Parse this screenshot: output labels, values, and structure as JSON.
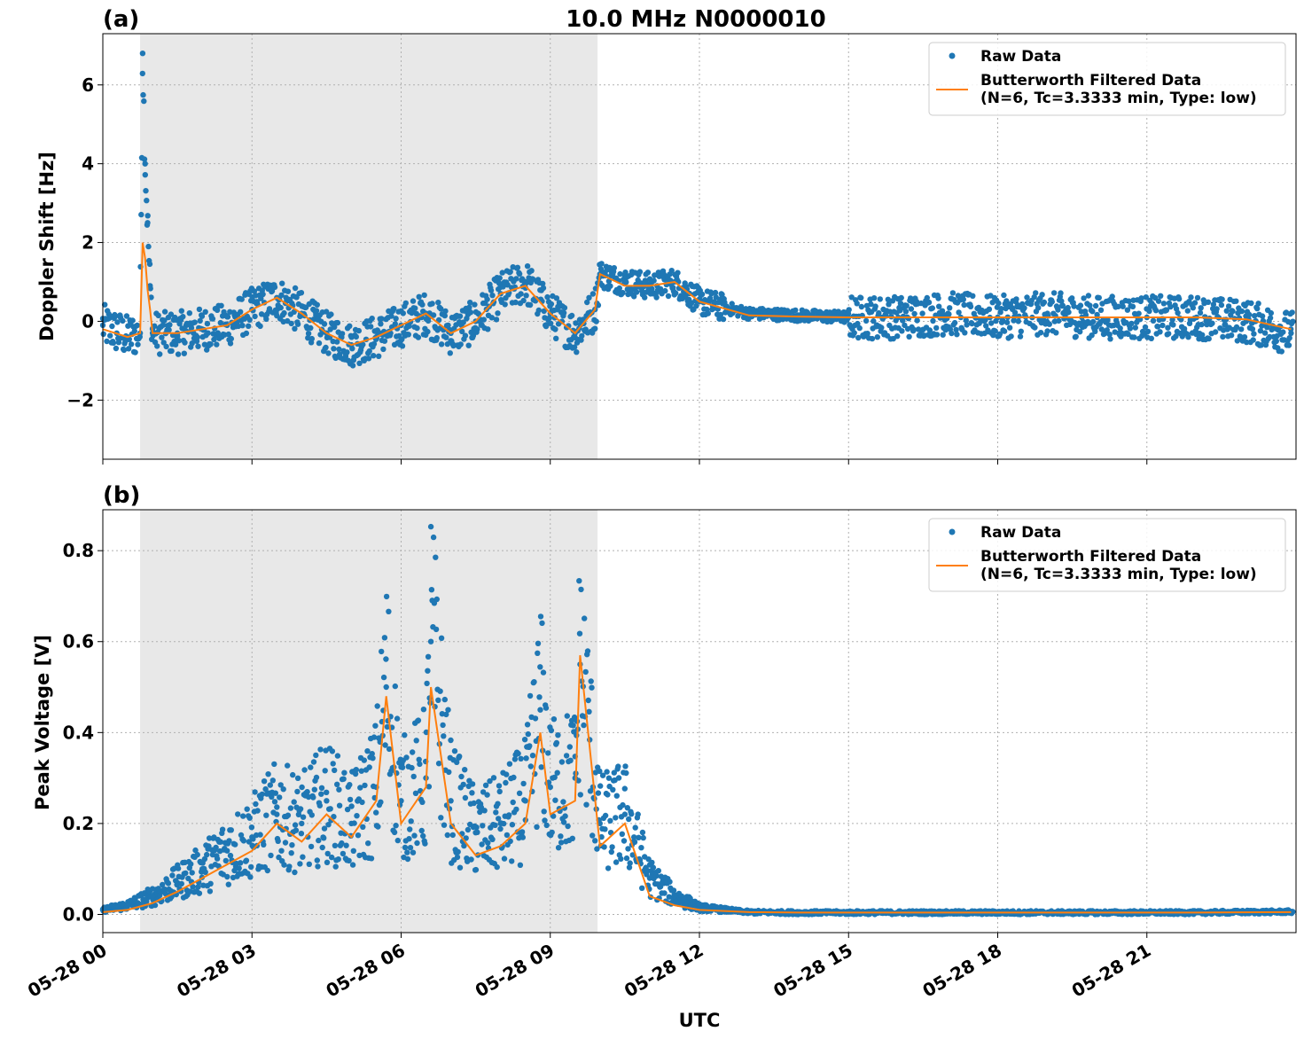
{
  "figure": {
    "title": "10.0 MHz N0000010",
    "xlabel": "UTC",
    "colors": {
      "raw": "#1f77b4",
      "filtered": "#ff7f0e",
      "shade": "#e8e8e8",
      "grid": "#b0b0b0"
    }
  },
  "chart_data": [
    {
      "type": "scatter",
      "panel_label": "(a)",
      "title": "10.0 MHz N0000010",
      "xlabel": "",
      "ylabel": "Doppler Shift [Hz]",
      "xlim": [
        "2023-05-28 00:00",
        "2023-05-29 00:00"
      ],
      "ylim": [
        -3.5,
        7.3
      ],
      "x_ticks": [
        "05-28 00",
        "05-28 03",
        "05-28 06",
        "05-28 09",
        "05-28 12",
        "05-28 15",
        "05-28 18",
        "05-28 21"
      ],
      "y_ticks": [
        -2,
        0,
        2,
        4,
        6
      ],
      "grid": true,
      "legend_position": "top-right",
      "shaded_interval_hours": [
        0.75,
        9.95
      ],
      "series": [
        {
          "name": "Raw Data",
          "style": "points",
          "color": "#1f77b4",
          "x_hours": [
            0.0,
            0.5,
            0.75,
            0.8,
            0.85,
            0.9,
            0.95,
            1.0,
            1.5,
            2.0,
            2.5,
            3.0,
            3.5,
            4.0,
            4.5,
            5.0,
            5.5,
            6.0,
            6.5,
            7.0,
            7.5,
            8.0,
            8.5,
            9.0,
            9.5,
            9.9,
            10.0,
            10.5,
            11.0,
            11.5,
            12.0,
            13.0,
            14.0,
            15.0,
            16.0,
            17.0,
            18.0,
            19.0,
            20.0,
            21.0,
            22.0,
            23.0,
            23.9
          ],
          "y": [
            -0.1,
            -0.4,
            -0.3,
            6.8,
            4.0,
            2.5,
            0.9,
            -0.3,
            -0.3,
            -0.2,
            -0.1,
            0.3,
            0.6,
            0.2,
            -0.3,
            -0.6,
            -0.4,
            -0.1,
            0.2,
            -0.3,
            0.0,
            0.7,
            1.0,
            0.2,
            -0.3,
            0.3,
            1.2,
            1.0,
            0.9,
            1.0,
            0.5,
            0.2,
            0.15,
            0.1,
            0.1,
            0.2,
            0.1,
            0.2,
            0.1,
            0.1,
            0.1,
            0.0,
            -0.3
          ]
        },
        {
          "name": "Butterworth Filtered Data\n(N=6, Tc=3.3333 min, Type: low)",
          "style": "line",
          "color": "#ff7f0e",
          "x_hours": [
            0.0,
            0.5,
            0.75,
            0.8,
            0.85,
            0.9,
            0.95,
            1.0,
            1.5,
            2.0,
            2.5,
            3.0,
            3.5,
            4.0,
            4.5,
            5.0,
            5.5,
            6.0,
            6.5,
            7.0,
            7.5,
            8.0,
            8.5,
            9.0,
            9.5,
            9.9,
            10.0,
            10.5,
            11.0,
            11.5,
            12.0,
            13.0,
            14.0,
            15.0,
            16.0,
            17.0,
            18.0,
            19.0,
            20.0,
            21.0,
            22.0,
            23.0,
            23.9
          ],
          "y": [
            -0.2,
            -0.4,
            -0.3,
            2.0,
            1.6,
            0.8,
            0.3,
            -0.3,
            -0.3,
            -0.2,
            -0.1,
            0.3,
            0.6,
            0.2,
            -0.3,
            -0.6,
            -0.4,
            -0.1,
            0.2,
            -0.3,
            0.0,
            0.7,
            0.9,
            0.2,
            -0.3,
            0.3,
            1.2,
            0.9,
            0.9,
            1.0,
            0.5,
            0.15,
            0.12,
            0.1,
            0.1,
            0.1,
            0.1,
            0.1,
            0.1,
            0.1,
            0.1,
            0.05,
            -0.2
          ]
        }
      ]
    },
    {
      "type": "scatter",
      "panel_label": "(b)",
      "title": "",
      "xlabel": "UTC",
      "ylabel": "Peak Voltage [V]",
      "xlim": [
        "2023-05-28 00:00",
        "2023-05-29 00:00"
      ],
      "ylim": [
        -0.04,
        0.89
      ],
      "x_ticks": [
        "05-28 00",
        "05-28 03",
        "05-28 06",
        "05-28 09",
        "05-28 12",
        "05-28 15",
        "05-28 18",
        "05-28 21"
      ],
      "y_ticks": [
        0.0,
        0.2,
        0.4,
        0.6,
        0.8
      ],
      "grid": true,
      "legend_position": "top-right",
      "shaded_interval_hours": [
        0.75,
        9.95
      ],
      "series": [
        {
          "name": "Raw Data",
          "style": "points",
          "color": "#1f77b4",
          "x_hours": [
            0.0,
            0.5,
            1.0,
            1.5,
            2.0,
            2.5,
            3.0,
            3.5,
            4.0,
            4.5,
            5.0,
            5.5,
            5.7,
            6.0,
            6.5,
            6.6,
            7.0,
            7.5,
            8.0,
            8.5,
            8.8,
            9.0,
            9.5,
            9.6,
            10.0,
            10.5,
            11.0,
            11.5,
            12.0,
            13.0,
            14.0,
            16.0,
            18.0,
            20.0,
            22.0,
            23.9
          ],
          "y": [
            0.01,
            0.02,
            0.04,
            0.07,
            0.1,
            0.14,
            0.17,
            0.22,
            0.2,
            0.25,
            0.2,
            0.28,
            0.5,
            0.25,
            0.3,
            0.6,
            0.25,
            0.18,
            0.2,
            0.25,
            0.45,
            0.28,
            0.3,
            0.55,
            0.2,
            0.22,
            0.08,
            0.04,
            0.015,
            0.005,
            0.004,
            0.004,
            0.004,
            0.004,
            0.004,
            0.006
          ]
        },
        {
          "name": "Butterworth Filtered Data\n(N=6, Tc=3.3333 min, Type: low)",
          "style": "line",
          "color": "#ff7f0e",
          "x_hours": [
            0.0,
            0.5,
            1.0,
            1.5,
            2.0,
            2.5,
            3.0,
            3.5,
            4.0,
            4.5,
            5.0,
            5.5,
            5.7,
            6.0,
            6.5,
            6.6,
            7.0,
            7.5,
            8.0,
            8.5,
            8.8,
            9.0,
            9.5,
            9.6,
            10.0,
            10.5,
            11.0,
            11.5,
            12.0,
            13.0,
            14.0,
            16.0,
            18.0,
            20.0,
            22.0,
            23.9
          ],
          "y": [
            0.005,
            0.01,
            0.025,
            0.05,
            0.08,
            0.11,
            0.14,
            0.2,
            0.16,
            0.22,
            0.17,
            0.25,
            0.48,
            0.2,
            0.28,
            0.5,
            0.2,
            0.13,
            0.15,
            0.2,
            0.4,
            0.22,
            0.25,
            0.57,
            0.15,
            0.2,
            0.04,
            0.02,
            0.01,
            0.005,
            0.004,
            0.004,
            0.004,
            0.004,
            0.004,
            0.005
          ]
        }
      ]
    }
  ]
}
